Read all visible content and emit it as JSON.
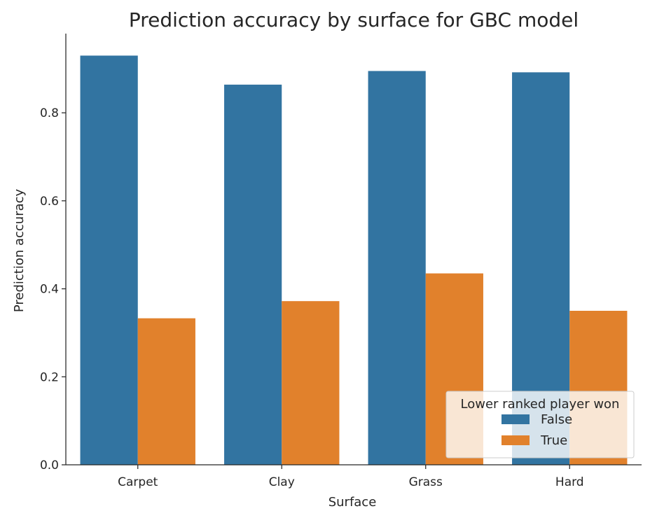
{
  "chart_data": {
    "type": "bar",
    "title": "Prediction accuracy by surface for GBC model",
    "xlabel": "Surface",
    "ylabel": "Prediction accuracy",
    "categories": [
      "Carpet",
      "Clay",
      "Grass",
      "Hard"
    ],
    "series": [
      {
        "name": "False",
        "color": "#3274a1",
        "values": [
          0.93,
          0.864,
          0.895,
          0.892
        ]
      },
      {
        "name": "True",
        "color": "#e1812c",
        "values": [
          0.333,
          0.372,
          0.435,
          0.35
        ]
      }
    ],
    "ylim": [
      0,
      0.98
    ],
    "yticks": [
      0.0,
      0.2,
      0.4,
      0.6,
      0.8
    ],
    "ytick_labels": [
      "0.0",
      "0.2",
      "0.4",
      "0.6",
      "0.8"
    ],
    "grid": false,
    "legend": {
      "title": "Lower ranked player won",
      "placement": "lower-right"
    }
  }
}
